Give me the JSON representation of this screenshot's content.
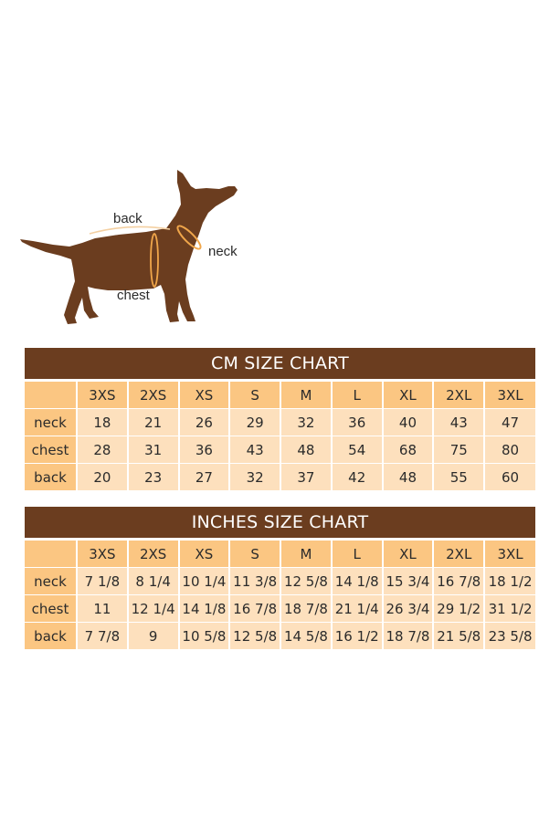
{
  "diagram": {
    "labels": {
      "back": "back",
      "neck": "neck",
      "chest": "chest"
    },
    "colors": {
      "dog": "#6b3d1f",
      "measure": "#f0a64a"
    }
  },
  "chart_data": [
    {
      "type": "table",
      "title": "CM SIZE CHART",
      "columns": [
        "3XS",
        "2XS",
        "XS",
        "S",
        "M",
        "L",
        "XL",
        "2XL",
        "3XL"
      ],
      "rows": [
        {
          "label": "neck",
          "values": [
            "18",
            "21",
            "26",
            "29",
            "32",
            "36",
            "40",
            "43",
            "47"
          ]
        },
        {
          "label": "chest",
          "values": [
            "28",
            "31",
            "36",
            "43",
            "48",
            "54",
            "68",
            "75",
            "80"
          ]
        },
        {
          "label": "back",
          "values": [
            "20",
            "23",
            "27",
            "32",
            "37",
            "42",
            "48",
            "55",
            "60"
          ]
        }
      ]
    },
    {
      "type": "table",
      "title": "INCHES SIZE CHART",
      "columns": [
        "3XS",
        "2XS",
        "XS",
        "S",
        "M",
        "L",
        "XL",
        "2XL",
        "3XL"
      ],
      "rows": [
        {
          "label": "neck",
          "values": [
            "7 1/8",
            "8 1/4",
            "10 1/4",
            "11 3/8",
            "12 5/8",
            "14 1/8",
            "15 3/4",
            "16 7/8",
            "18 1/2"
          ]
        },
        {
          "label": "chest",
          "values": [
            "11",
            "12 1/4",
            "14 1/8",
            "16 7/8",
            "18 7/8",
            "21 1/4",
            "26 3/4",
            "29 1/2",
            "31 1/2"
          ]
        },
        {
          "label": "back",
          "values": [
            "7 7/8",
            "9",
            "10 5/8",
            "12 5/8",
            "14 5/8",
            "16 1/2",
            "18 7/8",
            "21 5/8",
            "23 5/8"
          ]
        }
      ]
    }
  ],
  "colors": {
    "header_bg": "#6b3d1f",
    "header_text": "#ffffff",
    "size_row_bg": "#fbc682",
    "data_cell_bg": "#fde0bd"
  }
}
